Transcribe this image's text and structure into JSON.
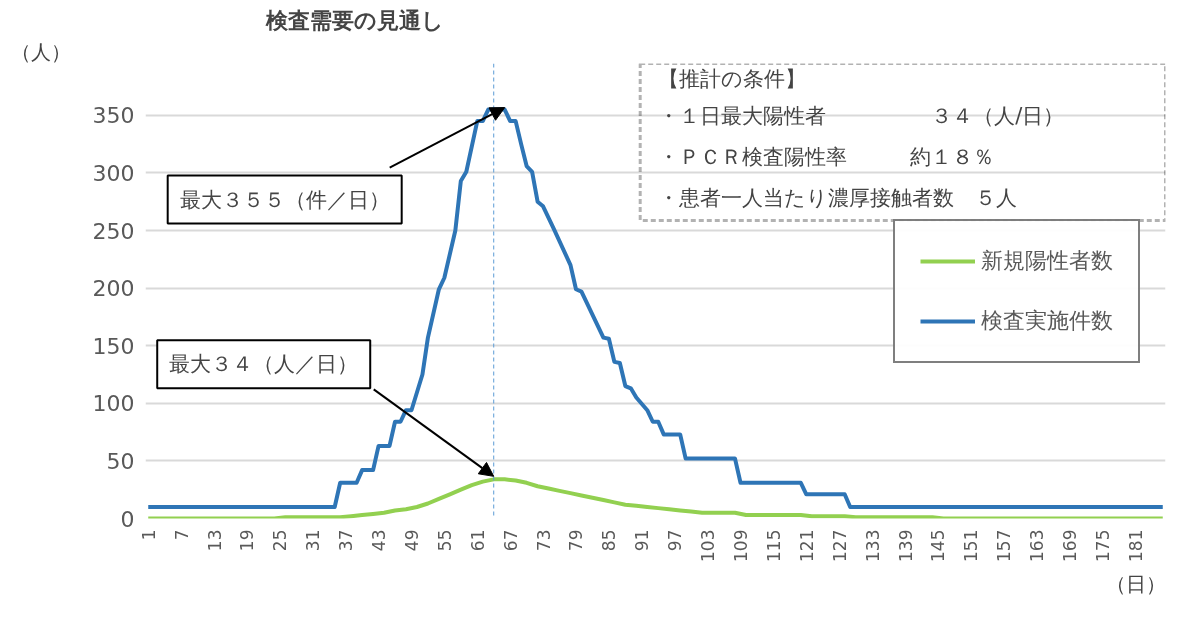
{
  "chart_data": {
    "type": "line",
    "title": "検査需要の見通し",
    "xlabel": "（日）",
    "ylabel": "（人）",
    "xlim": [
      0.5,
      186.5
    ],
    "xticks": [
      1,
      7,
      13,
      19,
      25,
      31,
      37,
      43,
      49,
      55,
      61,
      67,
      73,
      79,
      85,
      91,
      97,
      103,
      109,
      115,
      121,
      127,
      133,
      139,
      145,
      151,
      157,
      163,
      169,
      175,
      181
    ],
    "ylim": [
      0,
      395
    ],
    "yticks": [
      0,
      50,
      100,
      150,
      200,
      250,
      300,
      350
    ],
    "grid": "y",
    "legend": "right",
    "series": [
      {
        "name": "新規陽性者数",
        "color": "#92d050",
        "x": [
          1,
          24,
          26,
          36,
          38,
          40,
          42,
          44,
          46,
          48,
          50,
          52,
          54,
          56,
          58,
          60,
          62,
          64,
          66,
          68,
          70,
          72,
          74,
          76,
          78,
          80,
          82,
          84,
          86,
          88,
          90,
          92,
          94,
          96,
          98,
          100,
          102,
          108,
          110,
          120,
          122,
          128,
          130,
          144,
          146,
          186
        ],
        "values": [
          0,
          0,
          1,
          1,
          2,
          3,
          4,
          5,
          7,
          8,
          10,
          13,
          17,
          21,
          25,
          29,
          32,
          34,
          34,
          33,
          31,
          28,
          26,
          24,
          22,
          20,
          18,
          16,
          14,
          12,
          11,
          10,
          9,
          8,
          7,
          6,
          5,
          5,
          3,
          3,
          2,
          2,
          1,
          1,
          0,
          0
        ]
      },
      {
        "name": "検査実施件数",
        "color": "#2e75b6",
        "x": [
          1,
          35,
          36,
          39,
          40,
          42,
          43,
          45,
          46,
          47,
          48,
          49,
          51,
          52,
          54,
          55,
          57,
          58,
          59,
          61,
          62,
          63,
          66,
          67,
          68,
          69,
          70,
          71,
          72,
          73,
          75,
          78,
          79,
          80,
          84,
          85,
          86,
          87,
          88,
          89,
          90,
          92,
          93,
          94,
          95,
          98,
          99,
          108,
          109,
          120,
          121,
          128,
          129,
          186
        ],
        "values": [
          10,
          10,
          31,
          31,
          42,
          42,
          63,
          63,
          84,
          84,
          94,
          94,
          125,
          157,
          199,
          209,
          250,
          293,
          301,
          345,
          345,
          355,
          355,
          345,
          345,
          325,
          306,
          301,
          275,
          271,
          251,
          220,
          199,
          197,
          157,
          156,
          136,
          135,
          115,
          113,
          105,
          94,
          84,
          84,
          73,
          73,
          52,
          52,
          31,
          31,
          21,
          21,
          10,
          10
        ]
      }
    ],
    "ref_lines": [
      {
        "axis": "x",
        "value": 64,
        "color": "#5b9bd5",
        "line_style": "dashed"
      }
    ],
    "annotations": [
      {
        "text": "最大３５５（件／日）",
        "x": 66,
        "y": 355
      },
      {
        "text": "最大３４（人／日）",
        "x": 64,
        "y": 34
      },
      "【推計の条件】",
      "・１日最大陽性者　　　　　３４（人/日）",
      "・ＰＣＲ検査陽性率　　　約１８％",
      "・患者一人当たり濃厚接触者数　５人"
    ]
  }
}
